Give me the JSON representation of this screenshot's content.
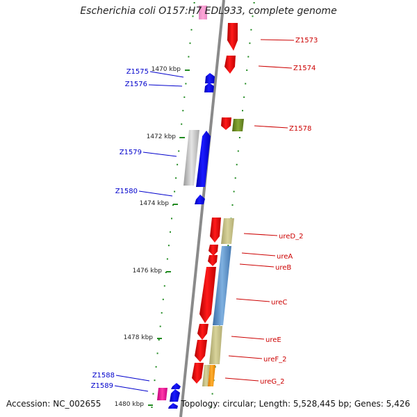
{
  "title": "Escherichia coli O157:H7 EDL933, complete genome",
  "footer": {
    "accession": "Accession: NC_002655",
    "summary": "Topology: circular; Length: 5,528,445 bp; Genes: 5,426"
  },
  "colors": {
    "backbone": "#8a8a8a",
    "tick": "#228b22",
    "forward_gene": "#ff0000",
    "reverse_gene": "#0000ff",
    "forward_label": "#cc0000",
    "reverse_label": "#0000cc"
  },
  "scale_labels": [
    "1470 kbp",
    "1472 kbp",
    "1474 kbp",
    "1476 kbp",
    "1478 kbp",
    "1480 kbp"
  ],
  "labels_right": [
    "Z1573",
    "Z1574",
    "Z1578",
    "ureD_2",
    "ureA",
    "ureB",
    "ureC",
    "ureE",
    "ureF_2",
    "ureG_2"
  ],
  "labels_left": [
    "Z1575",
    "Z1576",
    "Z1579",
    "Z1580",
    "Z1588",
    "Z1589"
  ]
}
